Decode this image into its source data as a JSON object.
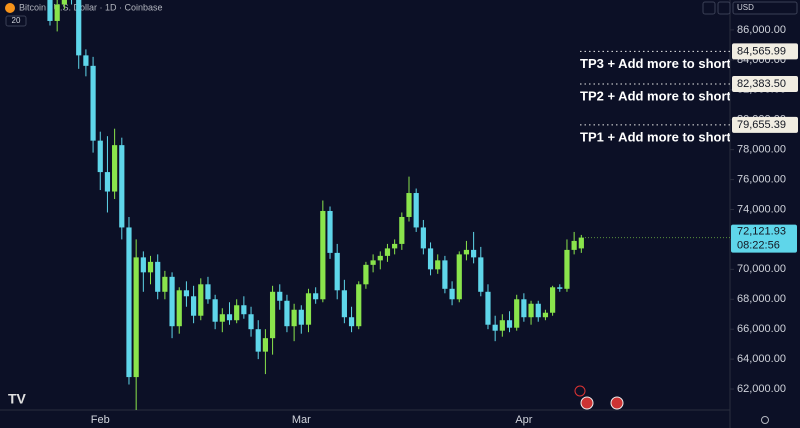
{
  "header": {
    "symbol": "Bitcoin / U.S. Dollar · 1D · Coinbase",
    "indicator": "20",
    "currency": "USD"
  },
  "chart_data": {
    "type": "candlestick",
    "up_color": "#8ae44c",
    "down_color": "#5fd6ea",
    "categories": [
      null,
      null,
      null,
      null,
      null,
      null,
      null,
      "Feb",
      null,
      null,
      null,
      null,
      null,
      null,
      null,
      null,
      null,
      null,
      null,
      null,
      null,
      null,
      null,
      null,
      null,
      null,
      null,
      null,
      null,
      null,
      null,
      null,
      null,
      null,
      null,
      "Mar",
      null,
      null,
      null,
      null,
      null,
      null,
      null,
      null,
      null,
      null,
      null,
      null,
      null,
      null,
      null,
      null,
      null,
      null,
      null,
      null,
      null,
      null,
      null,
      null,
      null,
      null,
      null,
      null,
      null,
      null,
      "Apr",
      null,
      null,
      null,
      null,
      null,
      null,
      null,
      null
    ],
    "open": [
      88200,
      86600,
      87700,
      89000,
      88100,
      84300,
      83600,
      78600,
      76500,
      75200,
      78300,
      72800,
      62800,
      70800,
      69800,
      70500,
      68500,
      69500,
      66200,
      68600,
      68200,
      66900,
      69000,
      68000,
      66500,
      67000,
      66600,
      67600,
      67000,
      66000,
      64500,
      65400,
      68500,
      67900,
      66200,
      67300,
      66300,
      68400,
      68000,
      73900,
      71100,
      68600,
      66800,
      66200,
      69000,
      70300,
      70600,
      70900,
      71400,
      71700,
      73500,
      75100,
      72800,
      71400,
      70000,
      70600,
      68700,
      68000,
      71000,
      71300,
      70800,
      68500,
      66300,
      65900,
      66600,
      66100,
      68000,
      66800,
      67700,
      66800,
      67100,
      68800,
      68700,
      71300,
      71400
    ],
    "high": [
      88500,
      88200,
      89500,
      89800,
      88500,
      84700,
      84200,
      79200,
      78900,
      79400,
      78800,
      73500,
      72000,
      71200,
      70900,
      71000,
      69900,
      69800,
      68800,
      69200,
      68900,
      69400,
      69500,
      68300,
      67400,
      67800,
      68000,
      68200,
      67500,
      66600,
      66000,
      68900,
      69000,
      68300,
      67700,
      67600,
      68700,
      68800,
      74600,
      74200,
      71700,
      69300,
      67500,
      69200,
      70500,
      71000,
      71200,
      71700,
      72000,
      73800,
      76200,
      75400,
      73300,
      71800,
      71000,
      70900,
      69200,
      71200,
      71900,
      72500,
      71500,
      69000,
      66900,
      67000,
      67200,
      68300,
      68400,
      67900,
      67900,
      67300,
      68900,
      69000,
      72000,
      72500,
      72300
    ],
    "low": [
      86300,
      85900,
      87400,
      87700,
      83400,
      82900,
      77800,
      75300,
      73800,
      74700,
      72000,
      62300,
      60100,
      68500,
      69000,
      68000,
      68000,
      65400,
      65700,
      67500,
      66400,
      66600,
      67700,
      66000,
      65800,
      66300,
      66400,
      66700,
      65500,
      64000,
      63000,
      64300,
      67300,
      65800,
      65200,
      65700,
      65800,
      67700,
      67800,
      70700,
      68000,
      66400,
      65800,
      66000,
      68700,
      69800,
      70000,
      70500,
      71000,
      71300,
      73200,
      72500,
      71000,
      69600,
      69700,
      68400,
      67600,
      67800,
      70600,
      70400,
      68200,
      66000,
      65200,
      65500,
      65800,
      65900,
      66500,
      66300,
      66500,
      66600,
      66900,
      68500,
      68500,
      71000,
      71100
    ],
    "close": [
      86600,
      87700,
      89000,
      88100,
      84300,
      83600,
      78600,
      76500,
      75200,
      78300,
      72800,
      62800,
      70800,
      69800,
      70500,
      68500,
      69500,
      66200,
      68600,
      68200,
      66900,
      69000,
      68000,
      66500,
      67000,
      66600,
      67600,
      67000,
      66000,
      64500,
      65400,
      68500,
      67900,
      66200,
      67300,
      66300,
      68400,
      68000,
      73900,
      71100,
      68600,
      66800,
      66200,
      69000,
      70300,
      70600,
      70900,
      71400,
      71700,
      73500,
      75100,
      72800,
      71400,
      70000,
      70600,
      68700,
      68000,
      71000,
      71300,
      70800,
      68500,
      66300,
      65900,
      66600,
      66100,
      68000,
      66800,
      67700,
      66800,
      67100,
      68800,
      68700,
      71300,
      71900,
      72121.93
    ],
    "last_price_label": "72,121.93",
    "countdown": "08:22:56",
    "ylim": [
      60600,
      88000
    ],
    "yticks": [
      {
        "value": 62000,
        "label": "62,000.00"
      },
      {
        "value": 64000,
        "label": "64,000.00"
      },
      {
        "value": 66000,
        "label": "66,000.00"
      },
      {
        "value": 68000,
        "label": "68,000.00"
      },
      {
        "value": 70000,
        "label": "70,000.00"
      },
      {
        "value": 72000,
        "label": "72,000.00"
      },
      {
        "value": 74000,
        "label": "74,000.00"
      },
      {
        "value": 76000,
        "label": "76,000.00"
      },
      {
        "value": 78000,
        "label": "78,000.00"
      },
      {
        "value": 80000,
        "label": "80,000.00"
      },
      {
        "value": 82000,
        "label": "82,000.00"
      },
      {
        "value": 84000,
        "label": "84,000.00"
      },
      {
        "value": 86000,
        "label": "86,000.00"
      }
    ],
    "levels": [
      {
        "name": "TP3 + Add more to short",
        "value": 84565.99,
        "value_label": "84,565.99"
      },
      {
        "name": "TP2 + Add more to short",
        "value": 82383.5,
        "value_label": "82,383.50"
      },
      {
        "name": "TP1 + Add more to short",
        "value": 79655.39,
        "value_label": "79,655.39"
      }
    ]
  }
}
